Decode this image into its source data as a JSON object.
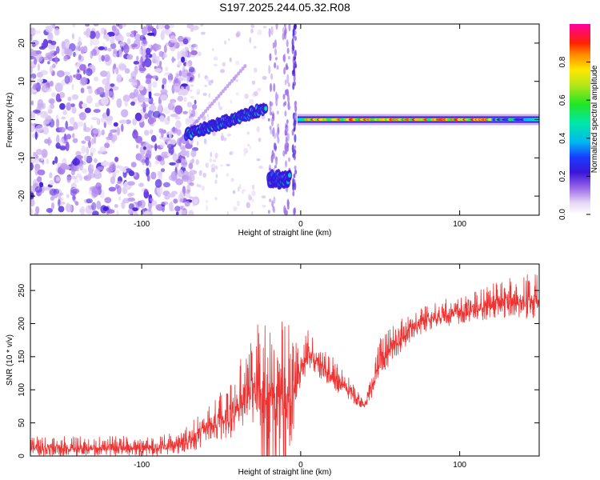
{
  "title": "S197.2025.244.05.32.R08",
  "chart_data": [
    {
      "type": "heatmap",
      "xlabel": "Height of straight line (km)",
      "ylabel": "Frequency (Hz)",
      "xlim": [
        -170,
        150
      ],
      "ylim": [
        -25,
        25
      ],
      "xticks": [
        -100,
        0,
        100
      ],
      "xticklabels": [
        "-100",
        "0",
        "100"
      ],
      "yticks": [
        -20,
        -10,
        0,
        10,
        20
      ],
      "yticklabels": [
        "-20",
        "-10",
        "0",
        "10",
        "20"
      ],
      "colorbar": {
        "label": "Normalized spectral amplitude",
        "lim": [
          0,
          1
        ],
        "ticks": [
          0,
          0.2,
          0.4,
          0.6,
          0.8
        ],
        "ticklabels": [
          "0.0",
          "0.2",
          "0.4",
          "0.6",
          "0.8"
        ],
        "colormap": "rainbow (white-purple-blue-cyan-green-yellow-red-magenta)"
      },
      "features": [
        {
          "name": "noise-region",
          "x_range": [
            -170,
            -72
          ],
          "y_range": [
            -25,
            25
          ],
          "amplitude": 0.15
        },
        {
          "name": "rising-trace",
          "x_range": [
            -72,
            -22
          ],
          "y_start": -4,
          "y_end": 3,
          "amplitude": 0.4
        },
        {
          "name": "dropout-trace",
          "x_range": [
            -20,
            -7
          ],
          "y_start": -15,
          "y_end": -16,
          "amplitude": 0.35
        },
        {
          "name": "steady-carrier",
          "x_range": [
            -2,
            150
          ],
          "y": 0,
          "amplitude": 0.9
        }
      ]
    },
    {
      "type": "line",
      "xlabel": "Height of straight line (km)",
      "ylabel": "SNR (10 * v/v)",
      "xlim": [
        -170,
        150
      ],
      "ylim": [
        0,
        290
      ],
      "xticks": [
        -100,
        0,
        100
      ],
      "xticklabels": [
        "-100",
        "0",
        "100"
      ],
      "yticks": [
        0,
        50,
        100,
        150,
        200,
        250
      ],
      "yticklabels": [
        "0",
        "50",
        "100",
        "150",
        "200",
        "250"
      ],
      "color": "#ee3333",
      "series": [
        {
          "name": "SNR envelope",
          "x": [
            -170,
            -150,
            -120,
            -90,
            -75,
            -65,
            -55,
            -45,
            -38,
            -32,
            -25,
            -18,
            -10,
            -5,
            0,
            5,
            10,
            15,
            20,
            30,
            40,
            45,
            50,
            60,
            70,
            80,
            90,
            100,
            110,
            120,
            130,
            140,
            150
          ],
          "lower": [
            0,
            0,
            0,
            0,
            5,
            10,
            20,
            25,
            40,
            50,
            40,
            20,
            0,
            0,
            100,
            130,
            120,
            115,
            100,
            85,
            70,
            90,
            120,
            150,
            175,
            190,
            195,
            200,
            205,
            205,
            210,
            205,
            210
          ],
          "upper": [
            30,
            30,
            30,
            30,
            40,
            60,
            90,
            110,
            150,
            170,
            210,
            200,
            210,
            200,
            210,
            190,
            180,
            165,
            150,
            120,
            85,
            130,
            180,
            200,
            220,
            230,
            240,
            240,
            250,
            260,
            270,
            275,
            280
          ]
        }
      ]
    }
  ]
}
